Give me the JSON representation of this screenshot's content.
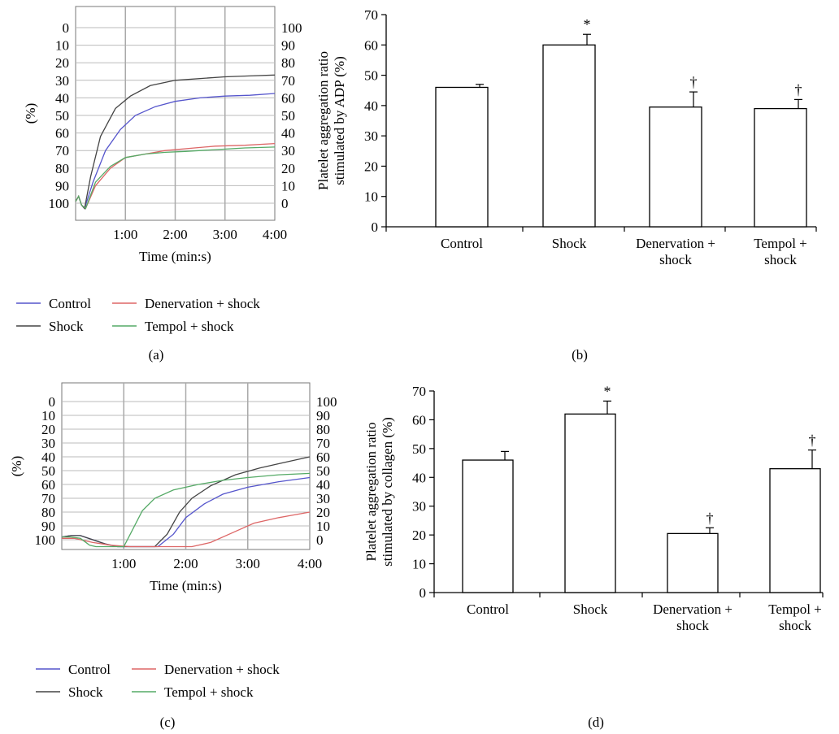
{
  "chart_data": [
    {
      "panel": "(a)",
      "type": "line",
      "xlabel": "Time (min:s)",
      "ylabel": "(%)",
      "x_ticks": [
        "1:00",
        "2:00",
        "3:00",
        "4:00"
      ],
      "y_left_ticks": [
        "0",
        "10",
        "20",
        "30",
        "40",
        "50",
        "60",
        "70",
        "80",
        "90",
        "100"
      ],
      "y_right_ticks": [
        "100",
        "90",
        "80",
        "70",
        "60",
        "50",
        "40",
        "30",
        "20",
        "10",
        "0"
      ],
      "xlim": [
        0,
        4
      ],
      "ylim": [
        -7,
        105
      ],
      "grid": true,
      "series": [
        {
          "name": "Control",
          "color": "#5555cc",
          "x": [
            0,
            0.06,
            0.12,
            0.18,
            0.35,
            0.6,
            0.9,
            1.2,
            1.6,
            2.0,
            2.5,
            3.0,
            3.5,
            4.0
          ],
          "y": [
            99,
            96,
            101,
            103,
            88,
            70,
            58,
            50,
            45,
            42,
            40,
            39,
            38.5,
            37.5
          ]
        },
        {
          "name": "Shock",
          "color": "#444444",
          "x": [
            0,
            0.06,
            0.12,
            0.18,
            0.3,
            0.5,
            0.8,
            1.1,
            1.5,
            2.0,
            2.5,
            3.0,
            3.5,
            4.0
          ],
          "y": [
            99,
            96,
            101,
            103,
            85,
            62,
            46,
            39,
            33,
            30,
            29,
            28,
            27.5,
            27
          ]
        },
        {
          "name": "Denervation + shock",
          "color": "#dd6666",
          "x": [
            0,
            0.06,
            0.12,
            0.2,
            0.4,
            0.7,
            1.0,
            1.4,
            1.8,
            2.2,
            2.8,
            3.4,
            4.0
          ],
          "y": [
            99,
            96,
            101,
            103,
            90,
            80,
            74,
            72,
            70,
            69,
            67.5,
            67,
            66
          ]
        },
        {
          "name": "Tempol + shock",
          "color": "#55aa66",
          "x": [
            0,
            0.06,
            0.12,
            0.2,
            0.4,
            0.7,
            1.0,
            1.4,
            1.8,
            2.2,
            2.8,
            3.4,
            4.0
          ],
          "y": [
            99,
            96,
            101,
            103,
            88,
            79,
            74,
            72,
            71,
            70.5,
            69.5,
            68.5,
            68
          ]
        }
      ]
    },
    {
      "panel": "(b)",
      "type": "bar",
      "ylabel": "Platelet aggregation ratio\nstimulated by ADP (%)",
      "categories": [
        "Control",
        "Shock",
        "Denervation +\nshock",
        "Tempol +\nshock"
      ],
      "values": [
        46,
        60,
        39.5,
        39
      ],
      "errors": [
        1,
        3.5,
        5,
        3
      ],
      "annotations": [
        "",
        "*",
        "†",
        "†"
      ],
      "ylim": [
        0,
        70
      ],
      "y_ticks": [
        0,
        10,
        20,
        30,
        40,
        50,
        60,
        70
      ]
    },
    {
      "panel": "(c)",
      "type": "line",
      "xlabel": "Time (min:s)",
      "ylabel": "(%)",
      "x_ticks": [
        "1:00",
        "2:00",
        "3:00",
        "4:00"
      ],
      "y_left_ticks": [
        "0",
        "10",
        "20",
        "30",
        "40",
        "50",
        "60",
        "70",
        "80",
        "90",
        "100"
      ],
      "y_right_ticks": [
        "100",
        "90",
        "80",
        "70",
        "60",
        "50",
        "40",
        "30",
        "20",
        "10",
        "0"
      ],
      "xlim": [
        0,
        4
      ],
      "ylim": [
        -7,
        105
      ],
      "grid": true,
      "series": [
        {
          "name": "Control",
          "color": "#5555cc",
          "x": [
            0,
            0.15,
            0.3,
            0.5,
            0.7,
            0.9,
            1.1,
            1.3,
            1.55,
            1.8,
            2.0,
            2.3,
            2.6,
            3.0,
            3.5,
            4.0
          ],
          "y": [
            98,
            97,
            97,
            100,
            103,
            106,
            108,
            109,
            108,
            96,
            84,
            74,
            67,
            62,
            58,
            55
          ]
        },
        {
          "name": "Shock",
          "color": "#444444",
          "x": [
            0,
            0.15,
            0.3,
            0.5,
            0.7,
            0.9,
            1.1,
            1.3,
            1.5,
            1.7,
            1.9,
            2.1,
            2.4,
            2.8,
            3.2,
            3.6,
            4.0
          ],
          "y": [
            98,
            97,
            97,
            100,
            103,
            106,
            108,
            109,
            108,
            96,
            80,
            70,
            61,
            53,
            48,
            44,
            40
          ]
        },
        {
          "name": "Denervation + shock",
          "color": "#dd6666",
          "x": [
            0,
            0.2,
            0.5,
            0.8,
            1.1,
            1.4,
            1.8,
            2.1,
            2.4,
            2.8,
            3.1,
            3.5,
            4.0
          ],
          "y": [
            99,
            99,
            102,
            104,
            106,
            107,
            108,
            107,
            102,
            94,
            88,
            84,
            80
          ]
        },
        {
          "name": "Tempol + shock",
          "color": "#55aa66",
          "x": [
            0,
            0.15,
            0.3,
            0.45,
            0.55,
            0.7,
            0.85,
            1.0,
            1.15,
            1.3,
            1.5,
            1.8,
            2.2,
            2.6,
            3.0,
            3.5,
            4.0
          ],
          "y": [
            98,
            98,
            99,
            104,
            111,
            112,
            111,
            109,
            92,
            79,
            70,
            64,
            60,
            57,
            55,
            53,
            52
          ]
        }
      ]
    },
    {
      "panel": "(d)",
      "type": "bar",
      "ylabel": "Platelet aggregation ratio\nstimulated by collagen (%)",
      "categories": [
        "Control",
        "Shock",
        "Denervation +\nshock",
        "Tempol +\nshock"
      ],
      "values": [
        46,
        62,
        20.5,
        43
      ],
      "errors": [
        3,
        4.5,
        2,
        6.5
      ],
      "annotations": [
        "",
        "*",
        "†",
        "†"
      ],
      "ylim": [
        0,
        70
      ],
      "y_ticks": [
        0,
        10,
        20,
        30,
        40,
        50,
        60,
        70
      ]
    }
  ],
  "legend": {
    "items": [
      {
        "label": "Control",
        "color": "#5555cc"
      },
      {
        "label": "Denervation + shock",
        "color": "#dd6666"
      },
      {
        "label": "Shock",
        "color": "#444444"
      },
      {
        "label": "Tempol + shock",
        "color": "#55aa66"
      }
    ]
  }
}
